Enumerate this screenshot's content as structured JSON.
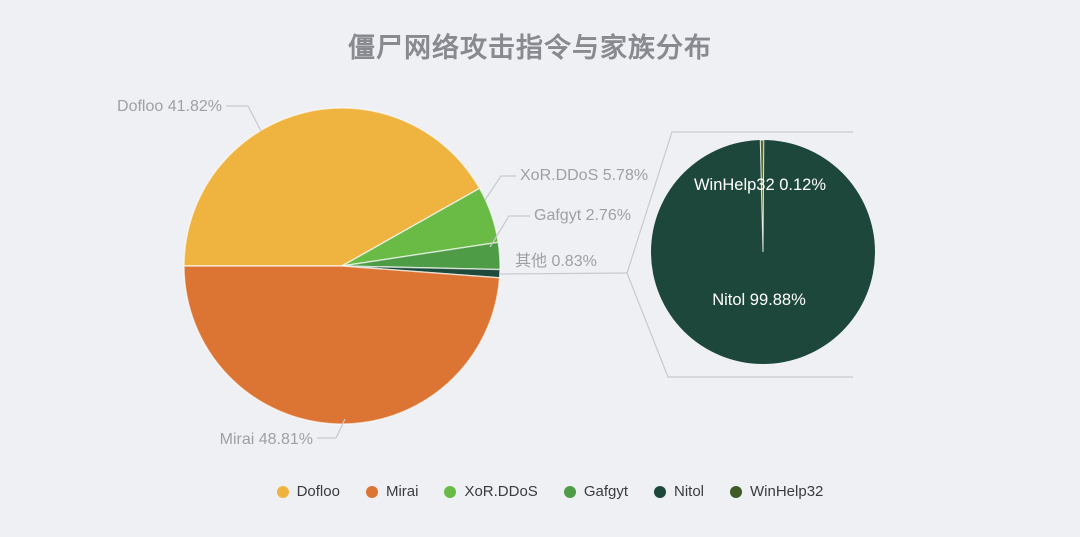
{
  "title": "僵尸网络攻击指令与家族分布",
  "chart_data": {
    "type": "pie",
    "title": "僵尸网络攻击指令与家族分布",
    "main_pie": {
      "description": "botnet family distribution, starts at 9 o'clock going clockwise",
      "slices": [
        {
          "id": "dofloo",
          "name": "Dofloo",
          "value": 41.82,
          "label": "Dofloo 41.82%",
          "color": "#EFB340"
        },
        {
          "id": "xor-ddos",
          "name": "XoR.DDoS",
          "value": 5.78,
          "label": "XoR.DDoS 5.78%",
          "color": "#69BB45"
        },
        {
          "id": "gafgyt",
          "name": "Gafgyt",
          "value": 2.76,
          "label": "Gafgyt 2.76%",
          "color": "#4E9C46"
        },
        {
          "id": "others",
          "name": "其他",
          "value": 0.83,
          "label": "其他 0.83%",
          "color": "#1E4A3B"
        },
        {
          "id": "mirai",
          "name": "Mirai",
          "value": 48.81,
          "label": "Mirai 48.81%",
          "color": "#DC7433"
        }
      ]
    },
    "detail_pie": {
      "description": "magnified breakdown of the 其他 0.83% slice",
      "slices": [
        {
          "id": "nitol",
          "name": "Nitol",
          "value": 99.88,
          "label": "Nitol  99.88%",
          "color": "#1D473A"
        },
        {
          "id": "winhelp32",
          "name": "WinHelp32",
          "value": 0.12,
          "label": "WinHelp32  0.12%",
          "color": "#5A6A33"
        }
      ]
    },
    "legend": [
      {
        "id": "dofloo",
        "name": "Dofloo",
        "color": "#EFB340"
      },
      {
        "id": "mirai",
        "name": "Mirai",
        "color": "#DC7433"
      },
      {
        "id": "xor-ddos",
        "name": "XoR.DDoS",
        "color": "#69BB45"
      },
      {
        "id": "gafgyt",
        "name": "Gafgyt",
        "color": "#4E9C46"
      },
      {
        "id": "nitol",
        "name": "Nitol",
        "color": "#1D473A"
      },
      {
        "id": "winhelp32",
        "name": "WinHelp32",
        "color": "#3E5B28"
      }
    ],
    "legend_position": "bottom",
    "grid": false
  },
  "colors": {
    "background": "#EFF0F4",
    "title_text": "#898A90",
    "outer_label_text": "#9EA0A5",
    "inner_label_text": "#FFFFFF",
    "leader_line": "#C6C9CF",
    "legend_text": "#3A3B3E"
  }
}
